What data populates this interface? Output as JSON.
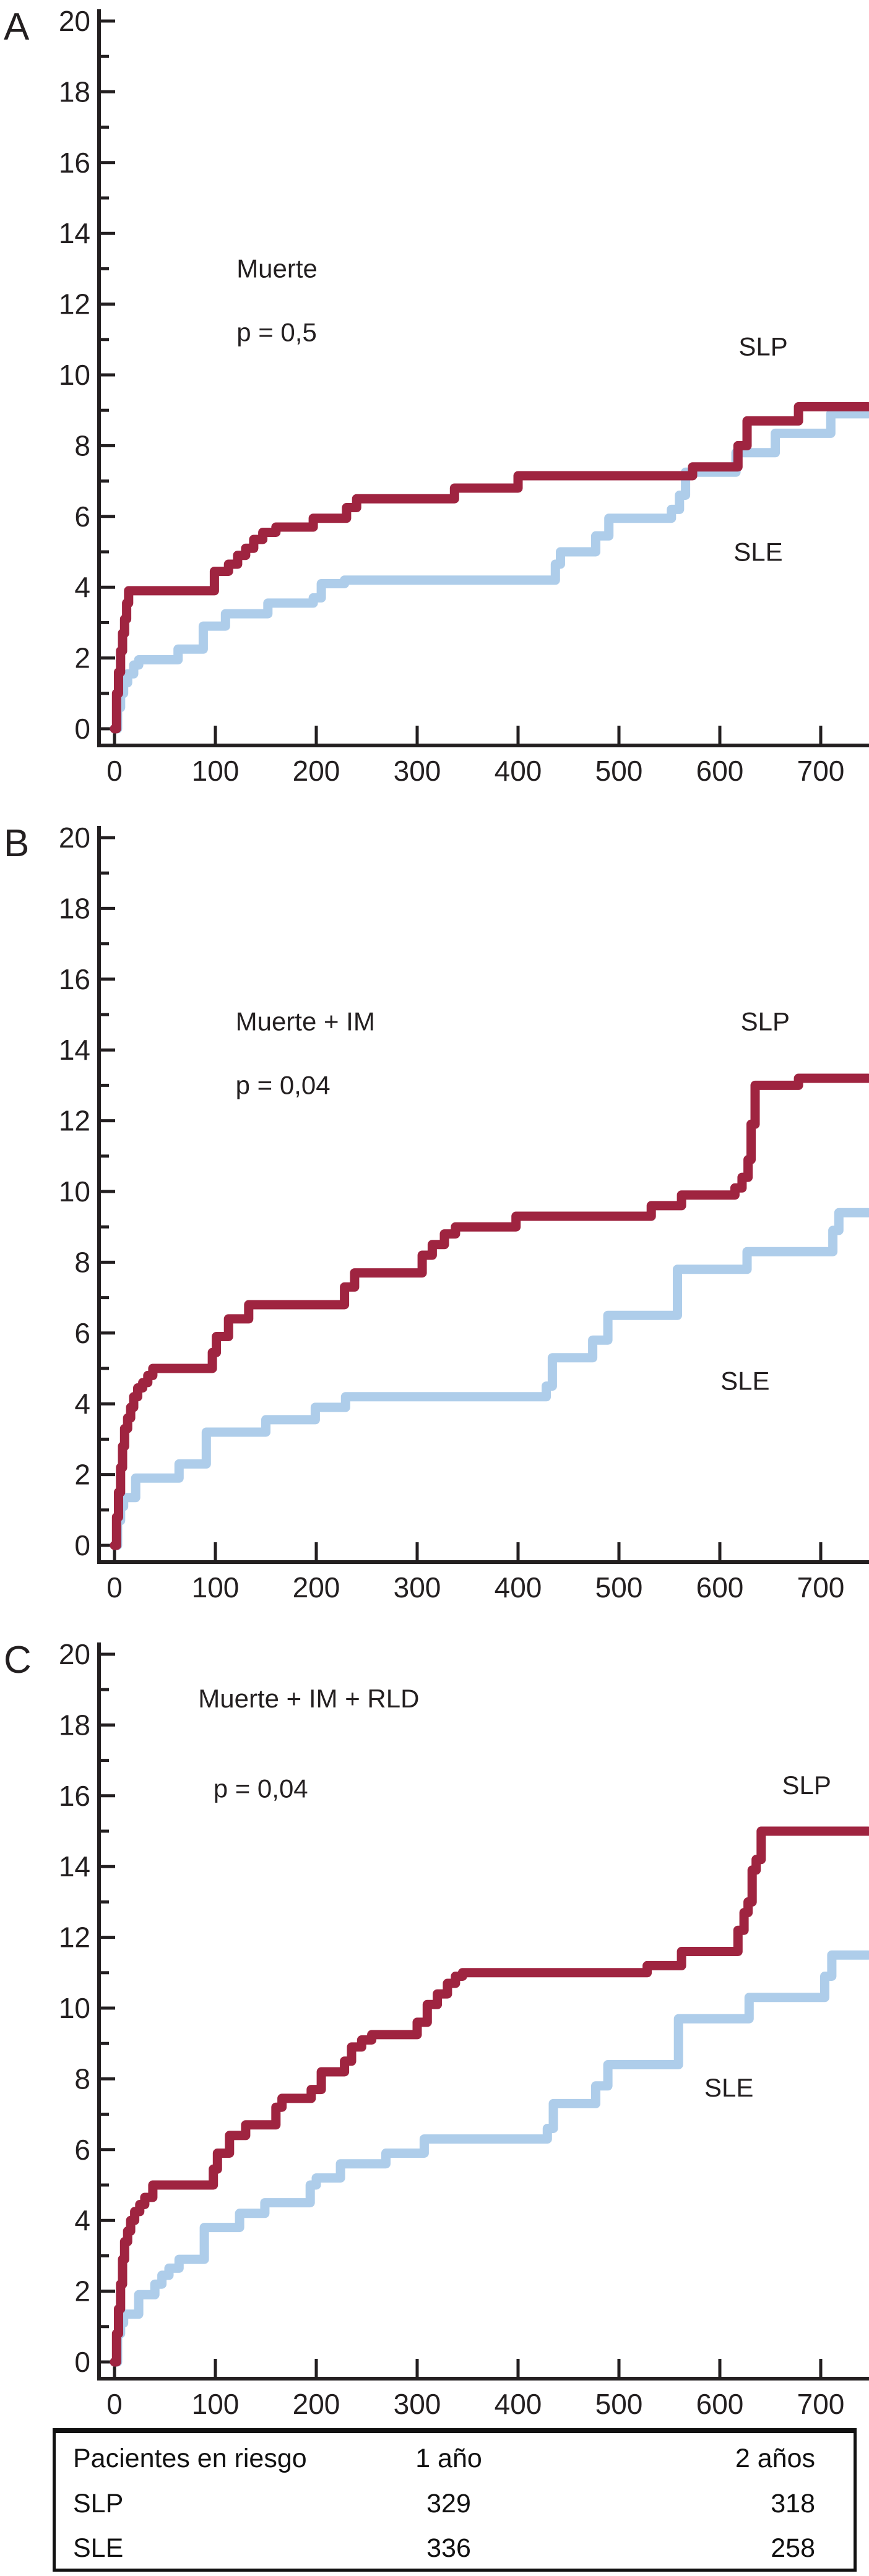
{
  "figure": {
    "panels": [
      {
        "letter": "A",
        "title": "Muerte",
        "p_text": "p = 0,5",
        "slp_label": "SLP",
        "sle_label": "SLE"
      },
      {
        "letter": "B",
        "title": "Muerte + IM",
        "p_text": "p = 0,04",
        "slp_label": "SLP",
        "sle_label": "SLE"
      },
      {
        "letter": "C",
        "title": "Muerte + IM + RLD",
        "p_text": "p = 0,04",
        "slp_label": "SLP",
        "sle_label": "SLE"
      }
    ],
    "colors": {
      "slp": "#9f2440",
      "sle": "#aecdea",
      "axis": "#231f20",
      "text": "#231f20"
    }
  },
  "chart_data": [
    {
      "type": "line",
      "subtype": "step-cumulative-incidence",
      "title": "Muerte",
      "p_label": "p = 0,5",
      "xlabel": "",
      "ylabel": "",
      "xlim": [
        0,
        747
      ],
      "ylim": [
        0,
        20
      ],
      "xticks": [
        0,
        100,
        200,
        300,
        400,
        500,
        600,
        700
      ],
      "ytick_label_step": 2,
      "ytick_minor_step": 1,
      "grid": false,
      "legend": [
        "SLP",
        "SLE"
      ],
      "annotations": {
        "title_xy": [
          121,
          12.75
        ],
        "p_xy": [
          121,
          10.95
        ],
        "slp_xy": [
          643,
          10.55
        ],
        "sle_xy": [
          638,
          4.75
        ]
      },
      "series": [
        {
          "name": "SLE",
          "color_key": "sle",
          "start": [
            0,
            0
          ],
          "end_x": 747,
          "steps": [
            [
              3,
              0.6
            ],
            [
              6,
              1.0
            ],
            [
              9,
              1.3
            ],
            [
              13,
              1.55
            ],
            [
              19,
              1.8
            ],
            [
              24,
              1.95
            ],
            [
              63,
              2.25
            ],
            [
              88,
              2.9
            ],
            [
              110,
              3.25
            ],
            [
              152,
              3.55
            ],
            [
              197,
              3.7
            ],
            [
              205,
              4.1
            ],
            [
              228,
              4.2
            ],
            [
              437,
              4.65
            ],
            [
              442,
              5.0
            ],
            [
              477,
              5.45
            ],
            [
              490,
              5.95
            ],
            [
              552,
              6.2
            ],
            [
              560,
              6.6
            ],
            [
              566,
              7.25
            ],
            [
              616,
              7.8
            ],
            [
              655,
              8.35
            ],
            [
              710,
              8.9
            ]
          ]
        },
        {
          "name": "SLP",
          "color_key": "slp",
          "start": [
            0,
            0
          ],
          "end_x": 747,
          "steps": [
            [
              2,
              1.0
            ],
            [
              4,
              1.6
            ],
            [
              6,
              2.2
            ],
            [
              8,
              2.7
            ],
            [
              10,
              3.1
            ],
            [
              12,
              3.55
            ],
            [
              14,
              3.9
            ],
            [
              99,
              4.45
            ],
            [
              113,
              4.65
            ],
            [
              122,
              4.9
            ],
            [
              130,
              5.1
            ],
            [
              138,
              5.35
            ],
            [
              147,
              5.55
            ],
            [
              160,
              5.7
            ],
            [
              197,
              5.95
            ],
            [
              230,
              6.25
            ],
            [
              240,
              6.5
            ],
            [
              337,
              6.8
            ],
            [
              400,
              7.15
            ],
            [
              573,
              7.4
            ],
            [
              618,
              8.0
            ],
            [
              627,
              8.7
            ],
            [
              678,
              9.1
            ]
          ]
        }
      ]
    },
    {
      "type": "line",
      "subtype": "step-cumulative-incidence",
      "title": "Muerte + IM",
      "p_label": "p = 0,04",
      "xlabel": "",
      "ylabel": "",
      "xlim": [
        0,
        747
      ],
      "ylim": [
        0,
        20
      ],
      "xticks": [
        0,
        100,
        200,
        300,
        400,
        500,
        600,
        700
      ],
      "ytick_label_step": 2,
      "ytick_minor_step": 1,
      "grid": false,
      "legend": [
        "SLP",
        "SLE"
      ],
      "annotations": {
        "title_xy": [
          120,
          14.55
        ],
        "p_xy": [
          120,
          12.75
        ],
        "slp_xy": [
          645,
          14.55
        ],
        "sle_xy": [
          625,
          4.4
        ]
      },
      "series": [
        {
          "name": "SLE",
          "color_key": "sle",
          "start": [
            0,
            0
          ],
          "end_x": 747,
          "steps": [
            [
              3,
              0.7
            ],
            [
              6,
              1.1
            ],
            [
              9,
              1.35
            ],
            [
              21,
              1.9
            ],
            [
              64,
              2.3
            ],
            [
              91,
              3.2
            ],
            [
              150,
              3.55
            ],
            [
              199,
              3.9
            ],
            [
              229,
              4.2
            ],
            [
              428,
              4.5
            ],
            [
              434,
              5.3
            ],
            [
              474,
              5.8
            ],
            [
              489,
              6.5
            ],
            [
              558,
              7.8
            ],
            [
              627,
              8.3
            ],
            [
              712,
              8.9
            ],
            [
              718,
              9.4
            ]
          ]
        },
        {
          "name": "SLP",
          "color_key": "slp",
          "start": [
            0,
            0
          ],
          "end_x": 747,
          "steps": [
            [
              2,
              0.8
            ],
            [
              4,
              1.5
            ],
            [
              6,
              2.2
            ],
            [
              8,
              2.8
            ],
            [
              10,
              3.3
            ],
            [
              13,
              3.6
            ],
            [
              16,
              3.9
            ],
            [
              19,
              4.2
            ],
            [
              23,
              4.45
            ],
            [
              28,
              4.6
            ],
            [
              33,
              4.8
            ],
            [
              38,
              5.0
            ],
            [
              97,
              5.45
            ],
            [
              101,
              5.9
            ],
            [
              113,
              6.4
            ],
            [
              133,
              6.8
            ],
            [
              228,
              7.3
            ],
            [
              238,
              7.7
            ],
            [
              305,
              8.2
            ],
            [
              315,
              8.5
            ],
            [
              327,
              8.8
            ],
            [
              338,
              9.0
            ],
            [
              398,
              9.3
            ],
            [
              532,
              9.6
            ],
            [
              562,
              9.9
            ],
            [
              615,
              10.1
            ],
            [
              622,
              10.4
            ],
            [
              628,
              10.9
            ],
            [
              631,
              11.9
            ],
            [
              635,
              13.0
            ],
            [
              678,
              13.2
            ]
          ]
        }
      ]
    },
    {
      "type": "line",
      "subtype": "step-cumulative-incidence",
      "title": "Muerte + IM + RLD",
      "p_label": "p = 0,04",
      "xlabel": "",
      "ylabel": "",
      "xlim": [
        0,
        747
      ],
      "ylim": [
        0,
        20
      ],
      "xticks": [
        0,
        100,
        200,
        300,
        400,
        500,
        600,
        700
      ],
      "ytick_label_step": 2,
      "ytick_minor_step": 1,
      "grid": false,
      "legend": [
        "SLP",
        "SLE"
      ],
      "annotations": {
        "title_xy": [
          83,
          18.5
        ],
        "p_xy": [
          98,
          15.95
        ],
        "slp_xy": [
          686,
          16.05
        ],
        "sle_xy": [
          609,
          7.5
        ]
      },
      "series": [
        {
          "name": "SLE",
          "color_key": "sle",
          "start": [
            0,
            0
          ],
          "end_x": 747,
          "steps": [
            [
              3,
              0.8
            ],
            [
              6,
              1.1
            ],
            [
              9,
              1.35
            ],
            [
              24,
              1.9
            ],
            [
              40,
              2.2
            ],
            [
              47,
              2.45
            ],
            [
              54,
              2.65
            ],
            [
              64,
              2.9
            ],
            [
              89,
              3.8
            ],
            [
              124,
              4.2
            ],
            [
              149,
              4.5
            ],
            [
              194,
              5.0
            ],
            [
              200,
              5.2
            ],
            [
              224,
              5.6
            ],
            [
              269,
              5.9
            ],
            [
              307,
              6.3
            ],
            [
              429,
              6.6
            ],
            [
              435,
              7.3
            ],
            [
              477,
              7.8
            ],
            [
              489,
              8.4
            ],
            [
              559,
              9.7
            ],
            [
              629,
              10.3
            ],
            [
              704,
              10.9
            ],
            [
              711,
              11.5
            ]
          ]
        },
        {
          "name": "SLP",
          "color_key": "slp",
          "start": [
            0,
            0
          ],
          "end_x": 747,
          "steps": [
            [
              2,
              0.8
            ],
            [
              4,
              1.5
            ],
            [
              6,
              2.2
            ],
            [
              8,
              2.9
            ],
            [
              10,
              3.4
            ],
            [
              13,
              3.7
            ],
            [
              16,
              4.0
            ],
            [
              20,
              4.25
            ],
            [
              25,
              4.45
            ],
            [
              30,
              4.65
            ],
            [
              38,
              5.0
            ],
            [
              98,
              5.45
            ],
            [
              102,
              5.9
            ],
            [
              114,
              6.4
            ],
            [
              130,
              6.7
            ],
            [
              160,
              7.2
            ],
            [
              166,
              7.45
            ],
            [
              195,
              7.7
            ],
            [
              205,
              8.2
            ],
            [
              228,
              8.5
            ],
            [
              235,
              8.9
            ],
            [
              245,
              9.1
            ],
            [
              255,
              9.25
            ],
            [
              300,
              9.6
            ],
            [
              310,
              10.1
            ],
            [
              320,
              10.4
            ],
            [
              330,
              10.7
            ],
            [
              338,
              10.9
            ],
            [
              345,
              11.0
            ],
            [
              528,
              11.2
            ],
            [
              562,
              11.6
            ],
            [
              618,
              12.2
            ],
            [
              624,
              12.7
            ],
            [
              628,
              13.0
            ],
            [
              632,
              13.9
            ],
            [
              636,
              14.2
            ],
            [
              641,
              15.0
            ]
          ]
        }
      ]
    }
  ],
  "table": {
    "header": [
      "Pacientes en riesgo",
      "1 año",
      "2 años"
    ],
    "rows": [
      [
        "SLP",
        "329",
        "318"
      ],
      [
        "SLE",
        "336",
        "258"
      ]
    ]
  }
}
